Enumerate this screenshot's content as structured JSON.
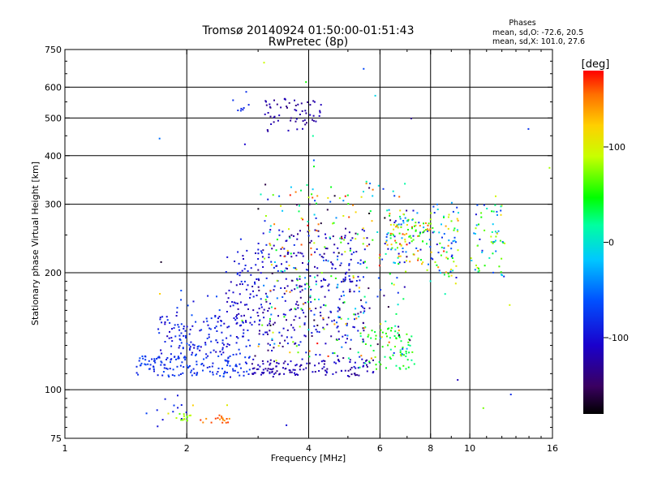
{
  "chart_data": {
    "type": "scatter",
    "title": "Tromsø 20140924 01:50:00-01:51:43",
    "subtitle": "RwPretec (8p)",
    "xlabel": "Frequency [MHz]",
    "ylabel": "Stationary phase Virtual Height [km]",
    "x_scale": "log",
    "y_scale": "log",
    "xlim": [
      1,
      16
    ],
    "ylim": [
      75,
      750
    ],
    "x_ticks": [
      1,
      2,
      4,
      6,
      8,
      10,
      16
    ],
    "x_tick_labels": [
      "1",
      "2",
      "4",
      "6",
      "8",
      "10",
      "16"
    ],
    "y_ticks": [
      75,
      100,
      200,
      300,
      400,
      500,
      600,
      750
    ],
    "y_tick_labels": [
      "75",
      "100",
      "200",
      "300",
      "400",
      "500",
      "600",
      "750"
    ],
    "x_gridlines": [
      2,
      4,
      6,
      8,
      10
    ],
    "y_gridlines": [
      100,
      200,
      300,
      400,
      500,
      600
    ],
    "grid": true,
    "stats": {
      "heading": "Phases",
      "line1": "mean, sd,O: -72.6, 20.5",
      "line2": "mean, sd,X: 101.0, 27.6"
    },
    "colorbar": {
      "label": "[deg]",
      "range": [
        -180,
        180
      ],
      "ticks": [
        100,
        0,
        -100
      ],
      "tick_labels": [
        "100",
        "0",
        "-100"
      ],
      "colormap": "rainbow (black-purple-blue-cyan-green-yellow-orange-red)"
    },
    "clusters": [
      {
        "freq": [
          1.5,
          2.9
        ],
        "height": [
          108,
          122
        ],
        "count": 140,
        "phase": [
          -95,
          -65
        ]
      },
      {
        "freq": [
          1.7,
          2.9
        ],
        "height": [
          122,
          155
        ],
        "count": 130,
        "phase": [
          -115,
          -75
        ]
      },
      {
        "freq": [
          2.5,
          3.2
        ],
        "height": [
          140,
          230
        ],
        "count": 80,
        "phase": [
          -125,
          -80
        ]
      },
      {
        "freq": [
          2.9,
          5.8
        ],
        "height": [
          108,
          120
        ],
        "count": 130,
        "phase": [
          -135,
          -100
        ]
      },
      {
        "freq": [
          5.3,
          7.3
        ],
        "height": [
          113,
          145
        ],
        "count": 70,
        "phase": [
          20,
          65
        ]
      },
      {
        "freq": [
          3.0,
          5.5
        ],
        "height": [
          130,
          260
        ],
        "count": 260,
        "phase": [
          -140,
          -80
        ]
      },
      {
        "freq": [
          3.0,
          7.0
        ],
        "height": [
          120,
          340
        ],
        "count": 320,
        "phase": [
          -180,
          180
        ]
      },
      {
        "freq": [
          3.1,
          4.3
        ],
        "height": [
          460,
          560
        ],
        "count": 60,
        "phase": [
          -140,
          -110
        ]
      },
      {
        "freq": [
          2.6,
          2.9
        ],
        "height": [
          520,
          590
        ],
        "count": 8,
        "phase": [
          -90,
          -70
        ]
      },
      {
        "freq": [
          6.2,
          7.8
        ],
        "height": [
          210,
          290
        ],
        "count": 90,
        "phase": [
          -120,
          170
        ]
      },
      {
        "freq": [
          7.0,
          8.1
        ],
        "height": [
          240,
          275
        ],
        "count": 20,
        "phase": [
          50,
          70
        ]
      },
      {
        "freq": [
          7.8,
          9.4
        ],
        "height": [
          190,
          300
        ],
        "count": 80,
        "phase": [
          -110,
          170
        ]
      },
      {
        "freq": [
          10.0,
          12.3
        ],
        "height": [
          190,
          300
        ],
        "count": 60,
        "phase": [
          -100,
          150
        ]
      },
      {
        "freq": [
          1.5,
          2.0
        ],
        "height": [
          80,
          97
        ],
        "count": 12,
        "phase": [
          -100,
          -70
        ]
      },
      {
        "freq": [
          1.85,
          2.05
        ],
        "height": [
          83,
          87
        ],
        "count": 15,
        "phase": [
          60,
          90
        ]
      },
      {
        "freq": [
          2.15,
          2.55
        ],
        "height": [
          82,
          86
        ],
        "count": 18,
        "phase": [
          140,
          170
        ]
      },
      {
        "freq": [
          1.85,
          2.6
        ],
        "height": [
          104,
          180
        ],
        "count": 30,
        "phase": [
          -120,
          -60
        ]
      },
      {
        "freq": [
          1.6,
          16.0
        ],
        "height": [
          80,
          700
        ],
        "count": 45,
        "phase": [
          -180,
          180
        ]
      }
    ]
  }
}
